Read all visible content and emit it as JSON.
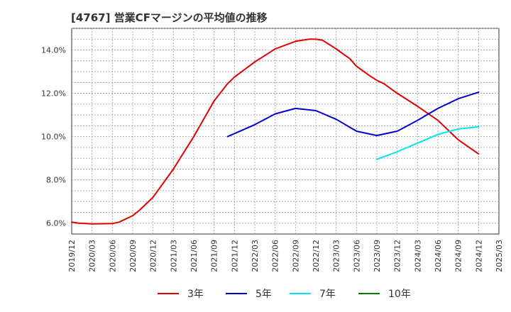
{
  "title": "[4767]  営業CFマージンの平均値の推移",
  "chart_data": {
    "type": "line",
    "title": "[4767]  営業CFマージンの平均値の推移",
    "xlabel": "",
    "ylabel": "",
    "x_ticks": [
      "2019/12",
      "2020/03",
      "2020/06",
      "2020/09",
      "2020/12",
      "2021/03",
      "2021/06",
      "2021/09",
      "2021/12",
      "2022/03",
      "2022/06",
      "2022/09",
      "2022/12",
      "2023/03",
      "2023/06",
      "2023/09",
      "2023/12",
      "2024/03",
      "2024/06",
      "2024/09",
      "2024/12",
      "2025/03"
    ],
    "y_ticks": [
      6.0,
      8.0,
      10.0,
      12.0,
      14.0
    ],
    "y_tick_format": "{v}%",
    "ylim": [
      5.5,
      15.0
    ],
    "xlim": [
      "2019/12",
      "2025/03"
    ],
    "grid": true,
    "legend_position": "bottom",
    "colors": {
      "3年": "#e00000",
      "5年": "#0000cc",
      "7年": "#00e5ee",
      "10年": "#008000"
    },
    "series": [
      {
        "name": "3年",
        "color": "#e00000",
        "x": [
          "2019/12",
          "2020/01",
          "2020/03",
          "2020/06",
          "2020/07",
          "2020/09",
          "2020/10",
          "2020/12",
          "2021/03",
          "2021/06",
          "2021/09",
          "2021/11",
          "2021/12",
          "2022/03",
          "2022/06",
          "2022/09",
          "2022/11",
          "2022/12",
          "2023/01",
          "2023/03",
          "2023/05",
          "2023/06",
          "2023/08",
          "2023/09",
          "2023/10",
          "2023/12",
          "2024/03",
          "2024/06",
          "2024/09",
          "2024/12"
        ],
        "values": [
          6.05,
          6.0,
          5.97,
          5.98,
          6.05,
          6.35,
          6.6,
          7.2,
          8.5,
          10.0,
          11.65,
          12.45,
          12.75,
          13.45,
          14.05,
          14.4,
          14.5,
          14.5,
          14.45,
          14.05,
          13.6,
          13.25,
          12.8,
          12.6,
          12.45,
          12.0,
          11.4,
          10.75,
          9.85,
          9.2
        ]
      },
      {
        "name": "5年",
        "color": "#0000cc",
        "x": [
          "2021/11",
          "2022/03",
          "2022/06",
          "2022/09",
          "2022/12",
          "2023/03",
          "2023/06",
          "2023/09",
          "2023/12",
          "2024/03",
          "2024/06",
          "2024/09",
          "2024/12"
        ],
        "values": [
          10.0,
          10.55,
          11.05,
          11.3,
          11.2,
          10.8,
          10.25,
          10.05,
          10.25,
          10.75,
          11.3,
          11.75,
          12.05
        ]
      },
      {
        "name": "7年",
        "color": "#00e5ee",
        "x": [
          "2023/09",
          "2023/12",
          "2024/03",
          "2024/06",
          "2024/09",
          "2024/12"
        ],
        "values": [
          8.95,
          9.3,
          9.7,
          10.1,
          10.35,
          10.45
        ]
      },
      {
        "name": "10年",
        "color": "#008000",
        "x": [],
        "values": []
      }
    ]
  }
}
